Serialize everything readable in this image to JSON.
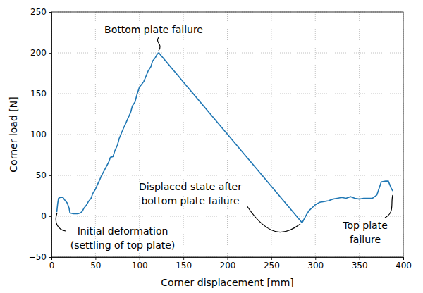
{
  "chart_data": {
    "type": "line",
    "x_label": "Corner displacement [mm]",
    "y_label": "Corner load [N]",
    "x": [
      6,
      7,
      8,
      10,
      13,
      15,
      18,
      20,
      21,
      25,
      30,
      33,
      35,
      37,
      40,
      42,
      45,
      47,
      50,
      52,
      55,
      57,
      60,
      62,
      65,
      67,
      70,
      72,
      75,
      77,
      80,
      82,
      85,
      87,
      90,
      92,
      95,
      97,
      100,
      103,
      105,
      107,
      110,
      113,
      115,
      118,
      120,
      122,
      285,
      287,
      290,
      293,
      297,
      300,
      305,
      310,
      315,
      320,
      325,
      330,
      335,
      340,
      345,
      350,
      355,
      360,
      365,
      370,
      375,
      380,
      383,
      386,
      388
    ],
    "series": [
      {
        "color": "#1f77b4",
        "values": [
          5,
          15,
          22,
          23,
          23,
          20,
          16,
          10,
          4,
          3,
          3,
          4,
          6,
          10,
          14,
          18,
          22,
          28,
          33,
          38,
          45,
          50,
          56,
          60,
          66,
          72,
          73,
          80,
          87,
          95,
          103,
          108,
          115,
          120,
          127,
          135,
          140,
          148,
          158,
          162,
          165,
          170,
          178,
          183,
          190,
          194,
          198,
          200,
          -8,
          -4,
          2,
          7,
          11,
          14,
          17,
          18,
          19,
          21,
          22,
          23,
          22,
          24,
          22,
          21,
          22,
          22,
          22,
          26,
          42,
          43,
          43,
          35,
          31
        ]
      }
    ],
    "xlim": [
      0,
      400
    ],
    "ylim": [
      -50,
      250
    ],
    "xticks": [
      0,
      50,
      100,
      150,
      200,
      250,
      300,
      350,
      400
    ],
    "yticks": [
      -50,
      0,
      50,
      100,
      150,
      200,
      250
    ],
    "grid": true,
    "annotations": [
      {
        "text": [
          "Bottom plate failure"
        ]
      },
      {
        "text": [
          "Initial deformation",
          "(settling of top plate)"
        ]
      },
      {
        "text": [
          "Displaced state after",
          "bottom plate failure"
        ]
      },
      {
        "text": [
          "Top plate",
          "failure"
        ]
      }
    ]
  }
}
